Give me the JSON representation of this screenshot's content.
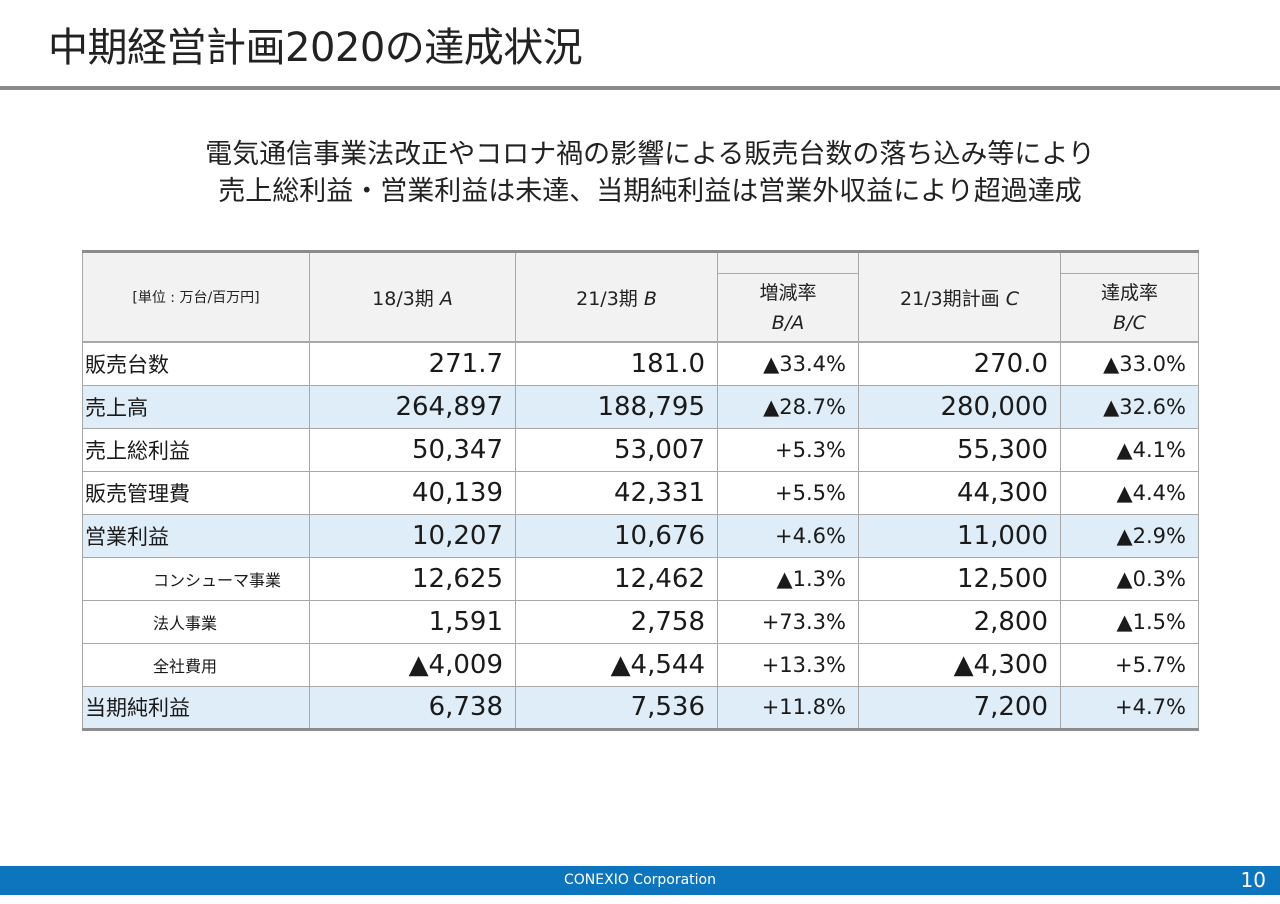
{
  "header": {
    "title": "中期経営計画2020の達成状況"
  },
  "summary": {
    "line1": "電気通信事業法改正やコロナ禍の影響による販売台数の落ち込み等により",
    "line2": "売上総利益・営業利益は未達、当期純利益は営業外収益により超過達成"
  },
  "table": {
    "unit_label": "[単位 : 万台/百万円]",
    "columns": {
      "fy18": {
        "label": "18/3期",
        "key": "A"
      },
      "fy21": {
        "label": "21/3期",
        "key": "B"
      },
      "change": {
        "label": "増減率",
        "formula": "B/A"
      },
      "plan": {
        "label": "21/3期計画",
        "key": "C"
      },
      "achievement": {
        "label": "達成率",
        "formula": "B/C"
      }
    },
    "rows": [
      {
        "label": "販売台数",
        "fy18": "271.7",
        "fy21": "181.0",
        "change": "▲33.4%",
        "plan": "270.0",
        "achievement": "▲33.0%"
      },
      {
        "label": "売上高",
        "fy18": "264,897",
        "fy21": "188,795",
        "change": "▲28.7%",
        "plan": "280,000",
        "achievement": "▲32.6%"
      },
      {
        "label": "売上総利益",
        "fy18": "50,347",
        "fy21": "53,007",
        "change": "+5.3%",
        "plan": "55,300",
        "achievement": "▲4.1%"
      },
      {
        "label": "販売管理費",
        "fy18": "40,139",
        "fy21": "42,331",
        "change": "+5.5%",
        "plan": "44,300",
        "achievement": "▲4.4%"
      },
      {
        "label": "営業利益",
        "fy18": "10,207",
        "fy21": "10,676",
        "change": "+4.6%",
        "plan": "11,000",
        "achievement": "▲2.9%"
      },
      {
        "label": "コンシューマ事業",
        "fy18": "12,625",
        "fy21": "12,462",
        "change": "▲1.3%",
        "plan": "12,500",
        "achievement": "▲0.3%"
      },
      {
        "label": "法人事業",
        "fy18": "1,591",
        "fy21": "2,758",
        "change": "+73.3%",
        "plan": "2,800",
        "achievement": "▲1.5%"
      },
      {
        "label": "全社費用",
        "fy18": "▲4,009",
        "fy21": "▲4,544",
        "change": "+13.3%",
        "plan": "▲4,300",
        "achievement": "+5.7%"
      },
      {
        "label": "当期純利益",
        "fy18": "6,738",
        "fy21": "7,536",
        "change": "+11.8%",
        "plan": "7,200",
        "achievement": "+4.7%"
      }
    ]
  },
  "footer": {
    "company": "CONEXIO Corporation",
    "page_number": "10"
  },
  "colors": {
    "band": "#deedf8",
    "header_bg": "#f2f2f2",
    "footer_bar": "#0d74be",
    "rule": "#8c8c8c"
  }
}
